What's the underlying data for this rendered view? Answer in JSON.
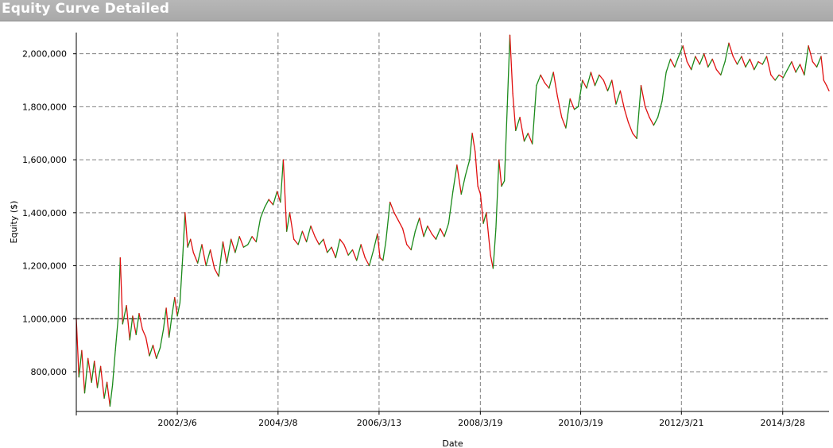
{
  "window": {
    "title": "Equity Curve Detailed"
  },
  "colors": {
    "up": "#1a8a1a",
    "down": "#e01010",
    "grid": "#808080",
    "axis": "#000000"
  },
  "chart_data": {
    "type": "line",
    "title": "Equity Curve Detailed",
    "xlabel": "Date",
    "ylabel": "Equity ($)",
    "ylim": [
      650000,
      2080000
    ],
    "y_ticks": [
      800000,
      1000000,
      1200000,
      1400000,
      1600000,
      1800000,
      2000000
    ],
    "y_tick_labels": [
      "800,000",
      "1,000,000",
      "1,200,000",
      "1,400,000",
      "1,600,000",
      "1,800,000",
      "2,000,000"
    ],
    "x_tick_labels": [
      "2002/3/6",
      "2004/3/8",
      "2006/3/13",
      "2008/3/19",
      "2010/3/19",
      "2012/3/21",
      "2014/3/28"
    ],
    "x_range": [
      "2000/3/1",
      "2015/2/28"
    ],
    "reference_line": 1000000,
    "grid": true,
    "series": [
      {
        "values": [
          [
            "2000/3/1",
            1000000
          ],
          [
            "2000/3/20",
            780000
          ],
          [
            "2000/4/10",
            880000
          ],
          [
            "2000/5/1",
            720000
          ],
          [
            "2000/5/25",
            850000
          ],
          [
            "2000/6/20",
            760000
          ],
          [
            "2000/7/10",
            840000
          ],
          [
            "2000/8/1",
            740000
          ],
          [
            "2000/8/25",
            820000
          ],
          [
            "2000/9/20",
            700000
          ],
          [
            "2000/10/10",
            760000
          ],
          [
            "2000/11/1",
            670000
          ],
          [
            "2000/11/20",
            750000
          ],
          [
            "2000/12/10",
            880000
          ],
          [
            "2001/1/1",
            1010000
          ],
          [
            "2001/1/15",
            1230000
          ],
          [
            "2001/2/1",
            980000
          ],
          [
            "2001/3/1",
            1050000
          ],
          [
            "2001/3/25",
            920000
          ],
          [
            "2001/4/15",
            1010000
          ],
          [
            "2001/5/10",
            940000
          ],
          [
            "2001/6/1",
            1020000
          ],
          [
            "2001/6/25",
            960000
          ],
          [
            "2001/7/20",
            930000
          ],
          [
            "2001/8/15",
            860000
          ],
          [
            "2001/9/10",
            900000
          ],
          [
            "2001/10/5",
            850000
          ],
          [
            "2001/11/1",
            890000
          ],
          [
            "2001/11/25",
            960000
          ],
          [
            "2001/12/15",
            1040000
          ],
          [
            "2002/1/5",
            930000
          ],
          [
            "2002/1/25",
            1010000
          ],
          [
            "2002/2/15",
            1080000
          ],
          [
            "2002/3/6",
            1010000
          ],
          [
            "2002/3/25",
            1060000
          ],
          [
            "2002/4/15",
            1240000
          ],
          [
            "2002/5/1",
            1400000
          ],
          [
            "2002/5/20",
            1270000
          ],
          [
            "2002/6/10",
            1300000
          ],
          [
            "2002/7/1",
            1250000
          ],
          [
            "2002/8/1",
            1210000
          ],
          [
            "2002/9/1",
            1280000
          ],
          [
            "2002/10/1",
            1200000
          ],
          [
            "2002/11/1",
            1260000
          ],
          [
            "2002/12/1",
            1190000
          ],
          [
            "2003/1/1",
            1160000
          ],
          [
            "2003/2/1",
            1290000
          ],
          [
            "2003/3/1",
            1210000
          ],
          [
            "2003/4/1",
            1300000
          ],
          [
            "2003/5/1",
            1250000
          ],
          [
            "2003/6/1",
            1310000
          ],
          [
            "2003/7/1",
            1270000
          ],
          [
            "2003/8/1",
            1280000
          ],
          [
            "2003/9/1",
            1310000
          ],
          [
            "2003/10/1",
            1290000
          ],
          [
            "2003/11/1",
            1380000
          ],
          [
            "2003/12/1",
            1420000
          ],
          [
            "2004/1/1",
            1450000
          ],
          [
            "2004/2/1",
            1430000
          ],
          [
            "2004/3/1",
            1480000
          ],
          [
            "2004/3/25",
            1440000
          ],
          [
            "2004/4/15",
            1600000
          ],
          [
            "2004/5/10",
            1330000
          ],
          [
            "2004/6/1",
            1400000
          ],
          [
            "2004/7/1",
            1300000
          ],
          [
            "2004/8/1",
            1280000
          ],
          [
            "2004/9/1",
            1330000
          ],
          [
            "2004/10/1",
            1290000
          ],
          [
            "2004/11/1",
            1350000
          ],
          [
            "2004/12/1",
            1310000
          ],
          [
            "2005/1/1",
            1280000
          ],
          [
            "2005/2/1",
            1300000
          ],
          [
            "2005/3/1",
            1250000
          ],
          [
            "2005/4/1",
            1270000
          ],
          [
            "2005/5/1",
            1230000
          ],
          [
            "2005/6/1",
            1300000
          ],
          [
            "2005/7/1",
            1280000
          ],
          [
            "2005/8/1",
            1240000
          ],
          [
            "2005/9/1",
            1260000
          ],
          [
            "2005/10/1",
            1220000
          ],
          [
            "2005/11/1",
            1280000
          ],
          [
            "2005/12/1",
            1230000
          ],
          [
            "2006/1/1",
            1200000
          ],
          [
            "2006/2/1",
            1260000
          ],
          [
            "2006/3/1",
            1320000
          ],
          [
            "2006/3/20",
            1230000
          ],
          [
            "2006/4/10",
            1220000
          ],
          [
            "2006/5/1",
            1290000
          ],
          [
            "2006/6/1",
            1440000
          ],
          [
            "2006/7/1",
            1400000
          ],
          [
            "2006/8/1",
            1370000
          ],
          [
            "2006/9/1",
            1340000
          ],
          [
            "2006/10/1",
            1280000
          ],
          [
            "2006/11/1",
            1260000
          ],
          [
            "2006/12/1",
            1330000
          ],
          [
            "2007/1/1",
            1380000
          ],
          [
            "2007/2/1",
            1310000
          ],
          [
            "2007/3/1",
            1350000
          ],
          [
            "2007/4/1",
            1320000
          ],
          [
            "2007/5/1",
            1300000
          ],
          [
            "2007/6/1",
            1340000
          ],
          [
            "2007/7/1",
            1310000
          ],
          [
            "2007/8/1",
            1360000
          ],
          [
            "2007/9/1",
            1480000
          ],
          [
            "2007/10/1",
            1580000
          ],
          [
            "2007/11/1",
            1470000
          ],
          [
            "2007/12/1",
            1540000
          ],
          [
            "2008/1/1",
            1600000
          ],
          [
            "2008/1/20",
            1700000
          ],
          [
            "2008/2/10",
            1630000
          ],
          [
            "2008/3/1",
            1500000
          ],
          [
            "2008/3/20",
            1470000
          ],
          [
            "2008/4/10",
            1360000
          ],
          [
            "2008/5/1",
            1400000
          ],
          [
            "2008/6/1",
            1240000
          ],
          [
            "2008/6/20",
            1190000
          ],
          [
            "2008/7/10",
            1340000
          ],
          [
            "2008/8/1",
            1600000
          ],
          [
            "2008/8/20",
            1500000
          ],
          [
            "2008/9/10",
            1520000
          ],
          [
            "2008/10/1",
            1800000
          ],
          [
            "2008/10/20",
            2070000
          ],
          [
            "2008/11/10",
            1850000
          ],
          [
            "2008/12/1",
            1710000
          ],
          [
            "2009/1/1",
            1760000
          ],
          [
            "2009/2/1",
            1670000
          ],
          [
            "2009/3/1",
            1700000
          ],
          [
            "2009/4/1",
            1660000
          ],
          [
            "2009/5/1",
            1880000
          ],
          [
            "2009/6/1",
            1920000
          ],
          [
            "2009/7/1",
            1890000
          ],
          [
            "2009/8/1",
            1870000
          ],
          [
            "2009/9/1",
            1930000
          ],
          [
            "2009/10/1",
            1840000
          ],
          [
            "2009/11/1",
            1760000
          ],
          [
            "2009/12/1",
            1720000
          ],
          [
            "2010/1/1",
            1830000
          ],
          [
            "2010/2/1",
            1790000
          ],
          [
            "2010/3/1",
            1800000
          ],
          [
            "2010/4/1",
            1900000
          ],
          [
            "2010/5/1",
            1870000
          ],
          [
            "2010/6/1",
            1930000
          ],
          [
            "2010/7/1",
            1880000
          ],
          [
            "2010/8/1",
            1920000
          ],
          [
            "2010/9/1",
            1900000
          ],
          [
            "2010/10/1",
            1860000
          ],
          [
            "2010/11/1",
            1900000
          ],
          [
            "2010/12/1",
            1810000
          ],
          [
            "2011/1/1",
            1860000
          ],
          [
            "2011/2/1",
            1790000
          ],
          [
            "2011/3/1",
            1740000
          ],
          [
            "2011/4/1",
            1700000
          ],
          [
            "2011/5/1",
            1680000
          ],
          [
            "2011/6/1",
            1880000
          ],
          [
            "2011/7/1",
            1800000
          ],
          [
            "2011/8/1",
            1760000
          ],
          [
            "2011/9/1",
            1730000
          ],
          [
            "2011/10/1",
            1760000
          ],
          [
            "2011/11/1",
            1820000
          ],
          [
            "2011/12/1",
            1930000
          ],
          [
            "2012/1/1",
            1980000
          ],
          [
            "2012/2/1",
            1950000
          ],
          [
            "2012/3/1",
            1990000
          ],
          [
            "2012/4/1",
            2030000
          ],
          [
            "2012/5/1",
            1970000
          ],
          [
            "2012/6/1",
            1940000
          ],
          [
            "2012/7/1",
            1990000
          ],
          [
            "2012/8/1",
            1960000
          ],
          [
            "2012/9/1",
            2000000
          ],
          [
            "2012/10/1",
            1950000
          ],
          [
            "2012/11/1",
            1980000
          ],
          [
            "2012/12/1",
            1940000
          ],
          [
            "2013/1/1",
            1920000
          ],
          [
            "2013/2/1",
            1970000
          ],
          [
            "2013/3/1",
            2040000
          ],
          [
            "2013/4/1",
            1990000
          ],
          [
            "2013/5/1",
            1960000
          ],
          [
            "2013/6/1",
            1990000
          ],
          [
            "2013/7/1",
            1950000
          ],
          [
            "2013/8/1",
            1980000
          ],
          [
            "2013/9/1",
            1940000
          ],
          [
            "2013/10/1",
            1970000
          ],
          [
            "2013/11/1",
            1960000
          ],
          [
            "2013/12/1",
            1990000
          ],
          [
            "2014/1/1",
            1920000
          ],
          [
            "2014/2/1",
            1900000
          ],
          [
            "2014/3/1",
            1920000
          ],
          [
            "2014/4/1",
            1910000
          ],
          [
            "2014/5/1",
            1940000
          ],
          [
            "2014/6/1",
            1970000
          ],
          [
            "2014/7/1",
            1930000
          ],
          [
            "2014/8/1",
            1960000
          ],
          [
            "2014/9/1",
            1920000
          ],
          [
            "2014/10/1",
            2030000
          ],
          [
            "2014/11/1",
            1970000
          ],
          [
            "2014/12/1",
            1950000
          ],
          [
            "2015/1/1",
            1990000
          ],
          [
            "2015/1/20",
            1900000
          ],
          [
            "2015/2/10",
            1880000
          ],
          [
            "2015/2/28",
            1860000
          ]
        ]
      }
    ]
  }
}
